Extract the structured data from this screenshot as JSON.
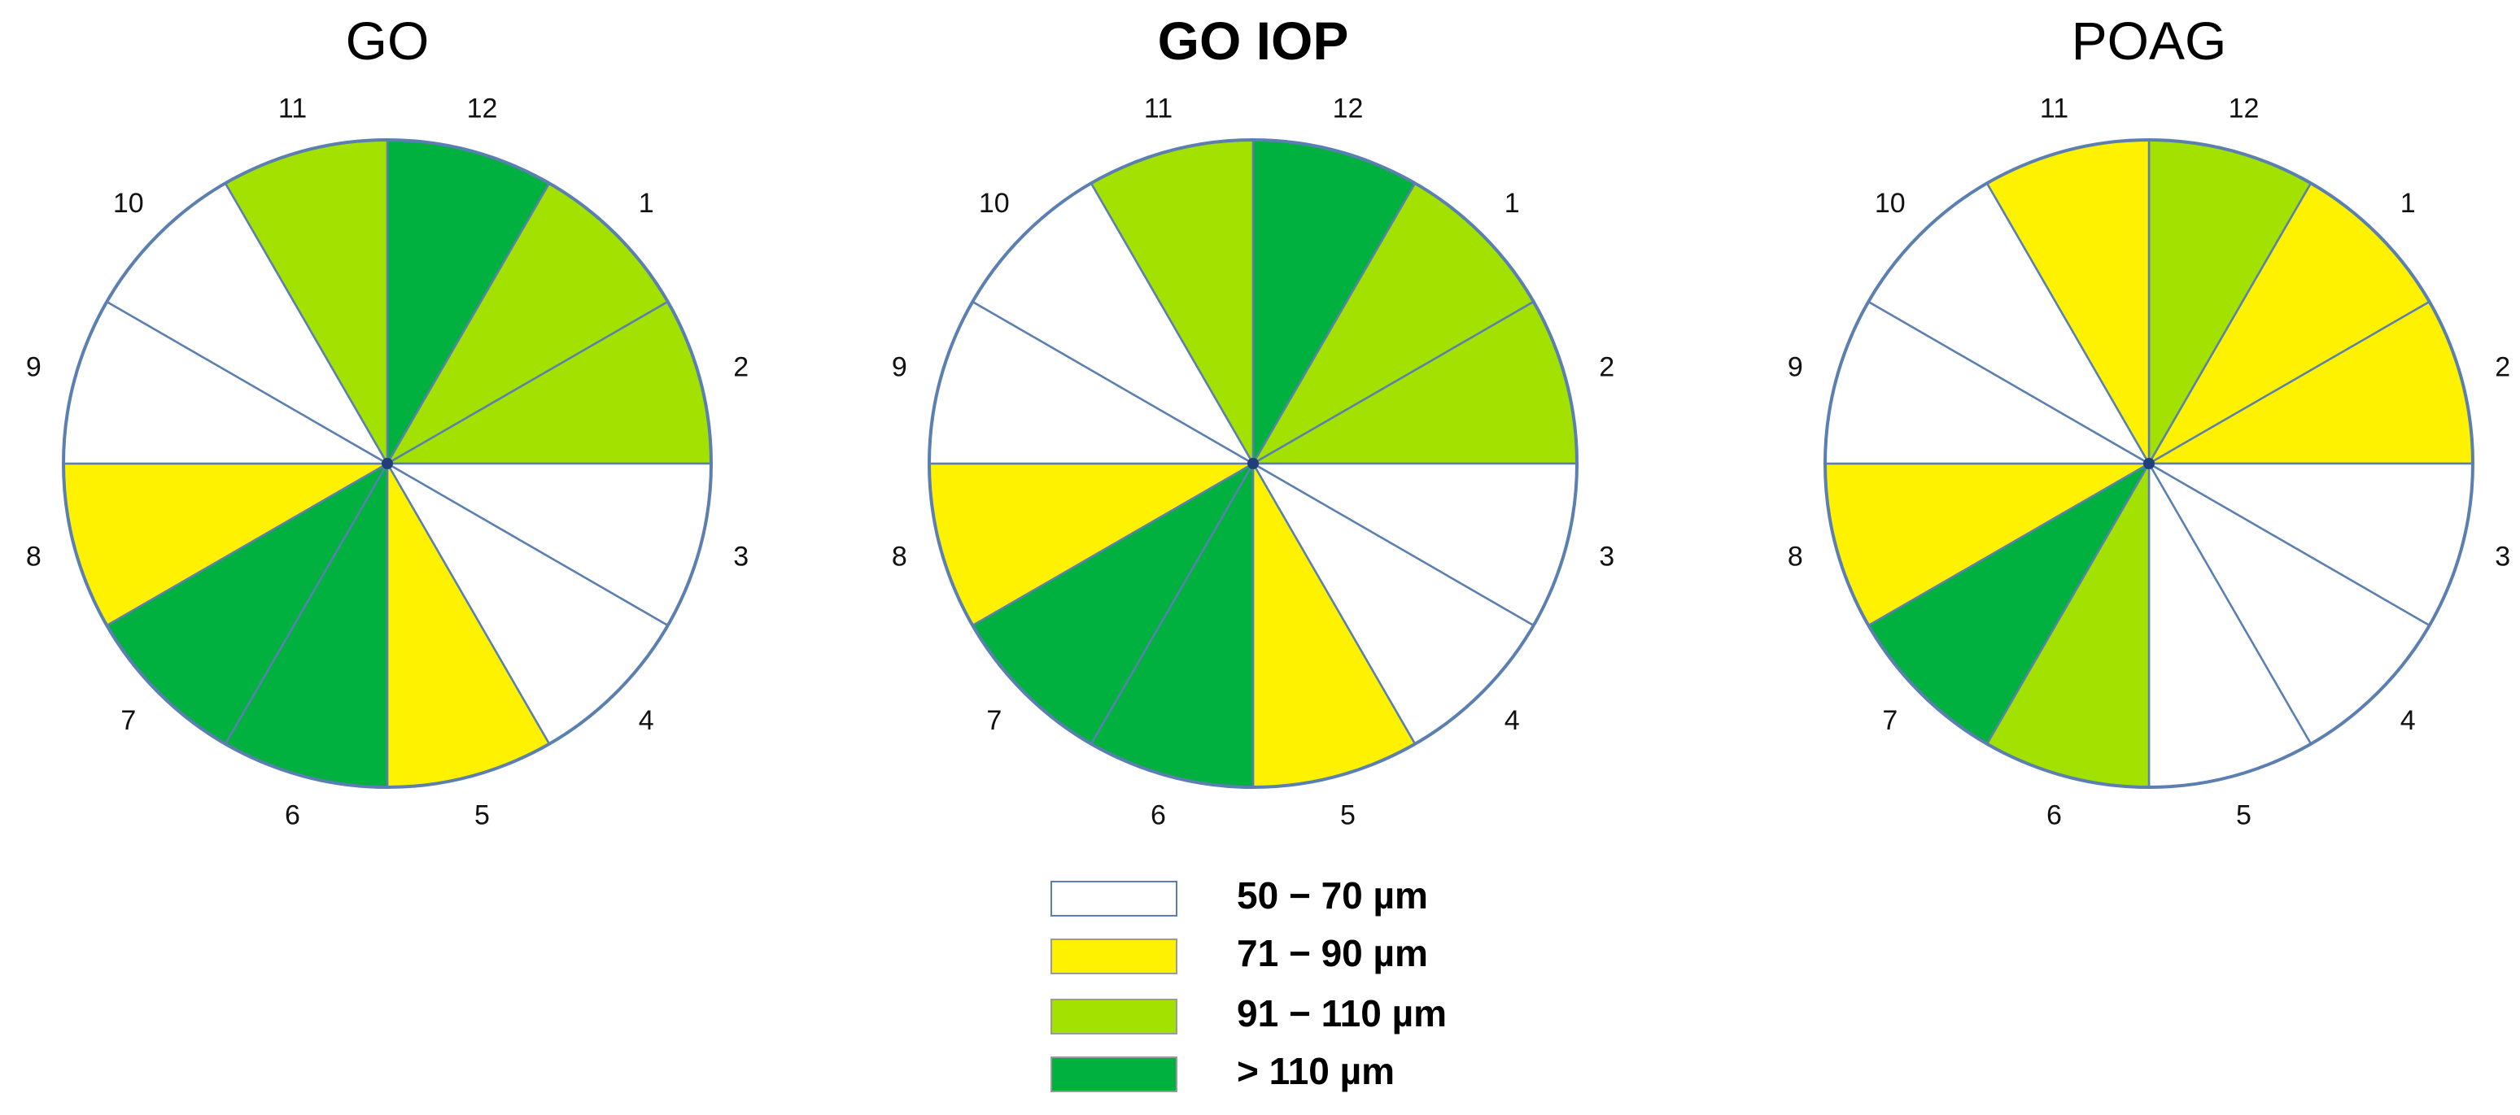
{
  "legend": [
    {
      "key": "white",
      "label": "50 − 70 µm",
      "color": "#ffffff"
    },
    {
      "key": "yellow",
      "label": "71 − 90 µm",
      "color": "#fff200"
    },
    {
      "key": "lime",
      "label": "91 − 110 µm",
      "color": "#a3e200"
    },
    {
      "key": "green",
      "label": "> 110 µm",
      "color": "#00b140"
    }
  ],
  "clock_hours": [
    "12",
    "1",
    "2",
    "3",
    "4",
    "5",
    "6",
    "7",
    "8",
    "9",
    "10",
    "11"
  ],
  "panels": [
    {
      "title": "GO",
      "sectors": {
        "12": "green",
        "1": "lime",
        "2": "lime",
        "3": "white",
        "4": "white",
        "5": "yellow",
        "6": "green",
        "7": "green",
        "8": "yellow",
        "9": "white",
        "10": "white",
        "11": "lime"
      }
    },
    {
      "title": "GO IOP",
      "sectors": {
        "12": "green",
        "1": "lime",
        "2": "lime",
        "3": "white",
        "4": "white",
        "5": "yellow",
        "6": "green",
        "7": "green",
        "8": "yellow",
        "9": "white",
        "10": "white",
        "11": "lime"
      }
    },
    {
      "title": "POAG",
      "sectors": {
        "12": "lime",
        "1": "yellow",
        "2": "yellow",
        "3": "white",
        "4": "white",
        "5": "white",
        "6": "lime",
        "7": "green",
        "8": "yellow",
        "9": "white",
        "10": "white",
        "11": "yellow"
      }
    }
  ],
  "outline_color": "#5a7fb0"
}
